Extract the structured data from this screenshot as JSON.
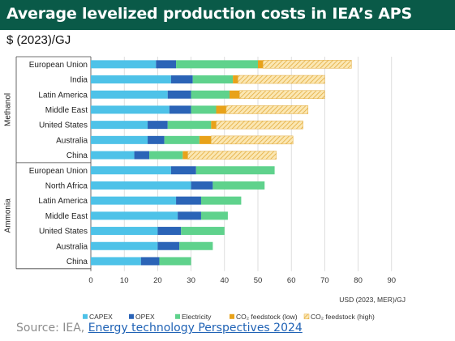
{
  "header": {
    "title": "Average levelized production costs in IEA’s APS",
    "unit": "$ (2023)/GJ"
  },
  "source": {
    "prefix": "Source: IEA, ",
    "link_text": "Energy technology Perspectives 2024"
  },
  "colors": {
    "banner": "#0a5a48",
    "capex": "#4ec2e8",
    "opex": "#2b64b7",
    "electricity": "#5fd28c",
    "co2_low": "#e8a21a",
    "co2_high_base": "#fbe7b3",
    "co2_high_hatch": "#e3ac3e"
  },
  "chart_data": {
    "type": "bar",
    "orientation": "horizontal",
    "stacked": true,
    "xlabel": "USD (2023, MER)/GJ",
    "xlim": [
      0,
      90
    ],
    "xticks": [
      0,
      10,
      20,
      30,
      40,
      50,
      60,
      70,
      80,
      90
    ],
    "grid": "vertical",
    "legend_position": "bottom",
    "groups": [
      {
        "name": "Methanol",
        "categories": [
          "European Union",
          "India",
          "Latin America",
          "Middle East",
          "United States",
          "Australia",
          "China"
        ]
      },
      {
        "name": "Ammonia",
        "categories": [
          "European Union",
          "North Africa",
          "Latin America",
          "Middle East",
          "United States",
          "Australia",
          "China"
        ]
      }
    ],
    "series": [
      {
        "name": "CAPEX",
        "values": [
          [
            19.5,
            24,
            23,
            23.5,
            17,
            17,
            13
          ],
          [
            24,
            30,
            25.5,
            26,
            20,
            20,
            15
          ]
        ]
      },
      {
        "name": "OPEX",
        "values": [
          [
            6,
            6.5,
            7,
            6.5,
            6,
            5,
            4.5
          ],
          [
            7.5,
            6.5,
            7.5,
            7,
            7,
            6.5,
            5.5
          ]
        ]
      },
      {
        "name": "Electricity",
        "values": [
          [
            24.5,
            12,
            11.5,
            7.5,
            13,
            10.5,
            10
          ],
          [
            23.5,
            15.5,
            12,
            8,
            13,
            10,
            9.5
          ]
        ]
      },
      {
        "name": "CO₂ feedstock (low)",
        "values": [
          [
            1.5,
            1.5,
            3,
            3,
            1.5,
            3.5,
            1.5
          ],
          [
            0,
            0,
            0,
            0,
            0,
            0,
            0
          ]
        ]
      },
      {
        "name": "CO₂ feedstock (high)",
        "values": [
          [
            26.5,
            26,
            25.5,
            24.5,
            26,
            24.5,
            26.5
          ],
          [
            0,
            0,
            0,
            0,
            0,
            0,
            0
          ]
        ]
      }
    ]
  }
}
